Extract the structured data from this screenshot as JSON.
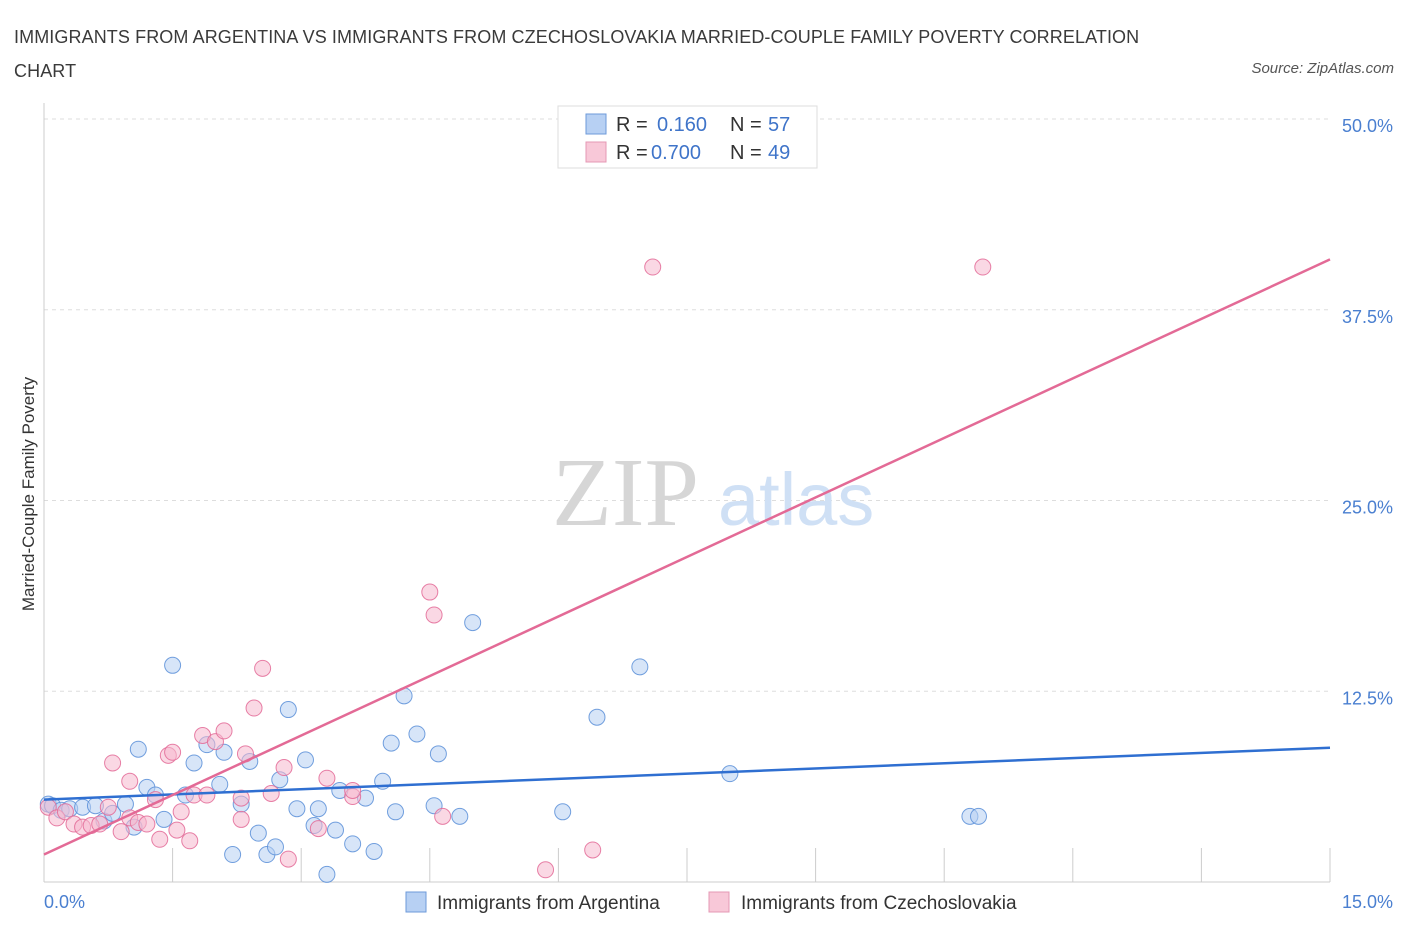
{
  "header": {
    "title": "IMMIGRANTS FROM ARGENTINA VS IMMIGRANTS FROM CZECHOSLOVAKIA MARRIED-COUPLE FAMILY POVERTY CORRELATION CHART",
    "source": "Source: ZipAtlas.com"
  },
  "watermark": {
    "zip": "ZIP",
    "atlas": "atlas"
  },
  "colors": {
    "series_blue": "#5b8fd8",
    "series_blue_fill": "#b7d0f3",
    "series_pink": "#e36a96",
    "series_pink_fill": "#f5b8cd",
    "tick_text": "#4a7fd0",
    "grid": "#dddddd"
  },
  "chart_data": {
    "type": "scatter",
    "title": "IMMIGRANTS FROM ARGENTINA VS IMMIGRANTS FROM CZECHOSLOVAKIA MARRIED-COUPLE FAMILY POVERTY CORRELATION CHART",
    "xlabel": "",
    "ylabel": "Married-Couple Family Poverty",
    "xlim": [
      0,
      15
    ],
    "ylim": [
      0,
      50
    ],
    "x_tick_labels": {
      "min": "0.0%",
      "max": "15.0%"
    },
    "y_ticks": [
      {
        "value": 12.5,
        "label": "12.5%"
      },
      {
        "value": 25.0,
        "label": "25.0%"
      },
      {
        "value": 37.5,
        "label": "37.5%"
      },
      {
        "value": 50.0,
        "label": "50.0%"
      }
    ],
    "grid": true,
    "legend_position": "top-center",
    "series": [
      {
        "name": "Immigrants from Argentina",
        "color": "blue",
        "R_label": "R =",
        "R": "0.160",
        "N_label": "N =",
        "N": "57",
        "trend": {
          "x0": 0,
          "y0": 5.4,
          "x1": 15,
          "y1": 8.8
        },
        "points": [
          [
            0.05,
            5.1
          ],
          [
            0.1,
            5.0
          ],
          [
            0.2,
            4.7
          ],
          [
            0.3,
            4.8
          ],
          [
            0.45,
            4.9
          ],
          [
            0.6,
            5.0
          ],
          [
            0.7,
            4.0
          ],
          [
            0.8,
            4.5
          ],
          [
            0.95,
            5.1
          ],
          [
            1.05,
            3.6
          ],
          [
            1.1,
            8.7
          ],
          [
            1.2,
            6.2
          ],
          [
            1.3,
            5.7
          ],
          [
            1.4,
            4.1
          ],
          [
            1.5,
            14.2
          ],
          [
            1.65,
            5.7
          ],
          [
            1.75,
            7.8
          ],
          [
            1.9,
            9.0
          ],
          [
            2.05,
            6.4
          ],
          [
            2.1,
            8.5
          ],
          [
            2.2,
            1.8
          ],
          [
            2.3,
            5.1
          ],
          [
            2.4,
            7.9
          ],
          [
            2.5,
            3.2
          ],
          [
            2.6,
            1.8
          ],
          [
            2.7,
            2.3
          ],
          [
            2.75,
            6.7
          ],
          [
            2.85,
            11.3
          ],
          [
            2.95,
            4.8
          ],
          [
            3.05,
            8.0
          ],
          [
            3.15,
            3.7
          ],
          [
            3.2,
            4.8
          ],
          [
            3.3,
            0.5
          ],
          [
            3.4,
            3.4
          ],
          [
            3.45,
            6.0
          ],
          [
            3.6,
            2.5
          ],
          [
            3.75,
            5.5
          ],
          [
            3.85,
            2.0
          ],
          [
            3.95,
            6.6
          ],
          [
            4.05,
            9.1
          ],
          [
            4.1,
            4.6
          ],
          [
            4.2,
            12.2
          ],
          [
            4.35,
            9.7
          ],
          [
            4.55,
            5.0
          ],
          [
            4.6,
            8.4
          ],
          [
            4.85,
            4.3
          ],
          [
            5.0,
            17.0
          ],
          [
            6.05,
            4.6
          ],
          [
            6.45,
            10.8
          ],
          [
            6.95,
            14.1
          ],
          [
            8.0,
            7.1
          ],
          [
            10.8,
            4.3
          ],
          [
            10.9,
            4.3
          ]
        ]
      },
      {
        "name": "Immigrants from Czechoslovakia",
        "color": "pink",
        "R_label": "R =",
        "R": "0.700",
        "N_label": "N =",
        "N": "49",
        "trend": {
          "x0": 0,
          "y0": 1.8,
          "x1": 15,
          "y1": 40.8
        },
        "points": [
          [
            0.05,
            4.9
          ],
          [
            0.15,
            4.2
          ],
          [
            0.25,
            4.6
          ],
          [
            0.35,
            3.8
          ],
          [
            0.45,
            3.6
          ],
          [
            0.55,
            3.7
          ],
          [
            0.65,
            3.8
          ],
          [
            0.75,
            4.9
          ],
          [
            0.8,
            7.8
          ],
          [
            0.9,
            3.3
          ],
          [
            1.0,
            4.2
          ],
          [
            1.0,
            6.6
          ],
          [
            1.1,
            3.9
          ],
          [
            1.2,
            3.8
          ],
          [
            1.3,
            5.4
          ],
          [
            1.35,
            2.8
          ],
          [
            1.45,
            8.3
          ],
          [
            1.5,
            8.5
          ],
          [
            1.55,
            3.4
          ],
          [
            1.6,
            4.6
          ],
          [
            1.7,
            2.7
          ],
          [
            1.75,
            5.7
          ],
          [
            1.85,
            9.6
          ],
          [
            1.9,
            5.7
          ],
          [
            2.0,
            9.2
          ],
          [
            2.1,
            9.9
          ],
          [
            2.3,
            4.1
          ],
          [
            2.3,
            5.5
          ],
          [
            2.35,
            8.4
          ],
          [
            2.45,
            11.4
          ],
          [
            2.55,
            14.0
          ],
          [
            2.65,
            5.8
          ],
          [
            2.8,
            7.5
          ],
          [
            2.85,
            1.5
          ],
          [
            3.2,
            3.5
          ],
          [
            3.3,
            6.8
          ],
          [
            3.6,
            5.6
          ],
          [
            3.6,
            6.0
          ],
          [
            4.5,
            19.0
          ],
          [
            4.55,
            17.5
          ],
          [
            4.65,
            4.3
          ],
          [
            5.85,
            0.8
          ],
          [
            6.4,
            2.1
          ],
          [
            7.1,
            40.3
          ],
          [
            10.95,
            40.3
          ]
        ]
      }
    ]
  }
}
